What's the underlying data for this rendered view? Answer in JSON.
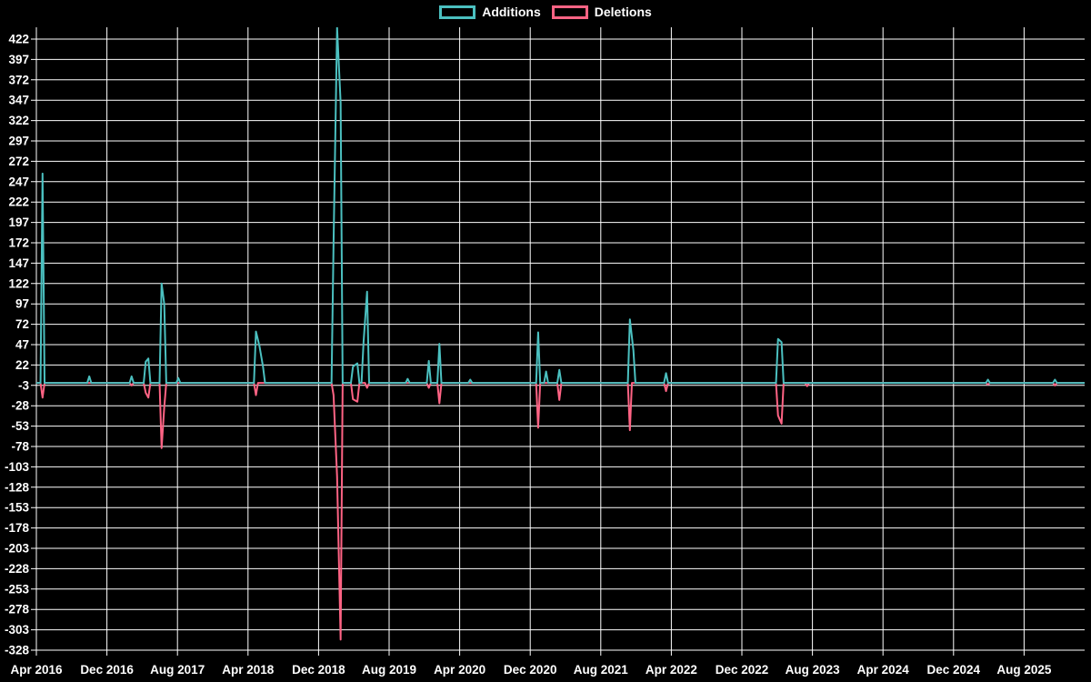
{
  "page": {
    "background": "#000000"
  },
  "chart_data": {
    "type": "line",
    "title": "",
    "x_unit": "months since Apr 2016 (weekly data points)",
    "legend": {
      "position": "top",
      "items": [
        {
          "label": "Additions",
          "color": "#4bc0c0"
        },
        {
          "label": "Deletions",
          "color": "#ff6384"
        }
      ]
    },
    "axes": {
      "y": {
        "ticks": [
          422,
          397,
          372,
          347,
          322,
          297,
          272,
          247,
          222,
          197,
          172,
          147,
          122,
          97,
          72,
          47,
          22,
          -3,
          -28,
          -53,
          -78,
          -103,
          -128,
          -153,
          -178,
          -203,
          -228,
          -253,
          -278,
          -303,
          -328
        ],
        "tick_step": 25,
        "baseline_value": 0
      },
      "x": {
        "tick_labels": [
          "Apr 2016",
          "Dec 2016",
          "Aug 2017",
          "Apr 2018",
          "Dec 2018",
          "Aug 2019",
          "Apr 2020",
          "Dec 2020",
          "Aug 2021",
          "Apr 2022",
          "Dec 2022",
          "Aug 2023",
          "Apr 2024",
          "Dec 2024",
          "Aug 2025"
        ],
        "tick_interval_months": 8,
        "range_months": [
          0,
          118.9
        ]
      }
    },
    "grid": {
      "visible": true,
      "color": "#ffffff"
    },
    "styles": {
      "text_color": "#ffffff",
      "background": "#000000"
    },
    "series": [
      {
        "name": "Additions",
        "color": "#4bc0c0",
        "baseline": 0,
        "events": [
          [
            0.7,
            257
          ],
          [
            6.0,
            8
          ],
          [
            10.8,
            8
          ],
          [
            12.4,
            26
          ],
          [
            12.7,
            30
          ],
          [
            14.2,
            122
          ],
          [
            14.5,
            97
          ],
          [
            16.1,
            6
          ],
          [
            24.9,
            63
          ],
          [
            25.3,
            45
          ],
          [
            25.7,
            20
          ],
          [
            33.7,
            172
          ],
          [
            34.1,
            436
          ],
          [
            34.5,
            344
          ],
          [
            35.9,
            20
          ],
          [
            36.4,
            24
          ],
          [
            37.1,
            50
          ],
          [
            37.5,
            112
          ],
          [
            42.1,
            5
          ],
          [
            44.5,
            27
          ],
          [
            45.7,
            48
          ],
          [
            49.2,
            4
          ],
          [
            56.9,
            62
          ],
          [
            57.8,
            14
          ],
          [
            59.3,
            16
          ],
          [
            67.3,
            78
          ],
          [
            67.7,
            40
          ],
          [
            71.4,
            12
          ],
          [
            84.1,
            54
          ],
          [
            84.5,
            50
          ],
          [
            107.9,
            4
          ],
          [
            115.5,
            4
          ]
        ]
      },
      {
        "name": "Deletions",
        "color": "#ff6384",
        "baseline": 0,
        "events": [
          [
            0.7,
            -18
          ],
          [
            10.8,
            -3
          ],
          [
            12.4,
            -12
          ],
          [
            12.7,
            -18
          ],
          [
            14.2,
            -80
          ],
          [
            14.5,
            -30
          ],
          [
            24.9,
            -15
          ],
          [
            33.7,
            -15
          ],
          [
            34.1,
            -115
          ],
          [
            34.5,
            -315
          ],
          [
            35.9,
            -20
          ],
          [
            36.4,
            -23
          ],
          [
            37.5,
            -6
          ],
          [
            44.5,
            -6
          ],
          [
            45.7,
            -25
          ],
          [
            56.9,
            -55
          ],
          [
            59.3,
            -21
          ],
          [
            67.3,
            -58
          ],
          [
            71.4,
            -10
          ],
          [
            84.1,
            -40
          ],
          [
            84.5,
            -50
          ],
          [
            87.4,
            -4
          ],
          [
            107.9,
            -2
          ],
          [
            115.5,
            -3
          ]
        ]
      }
    ]
  }
}
